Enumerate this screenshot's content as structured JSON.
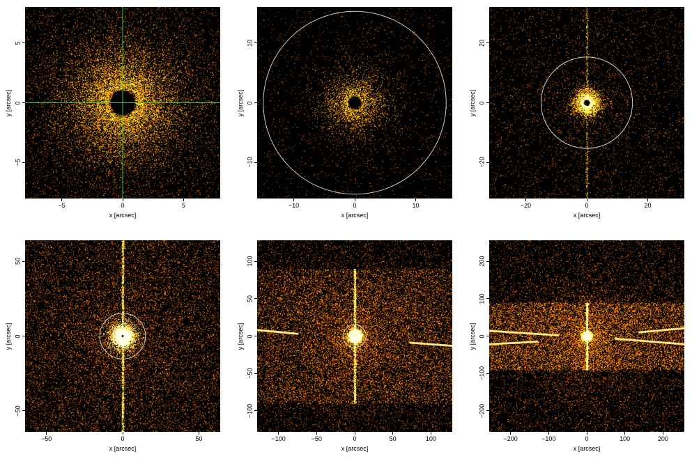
{
  "figure": {
    "panels": [
      {
        "id": "p1",
        "xlabel": "x [arcsec]",
        "ylabel": "y [arcsec]",
        "xlim": [
          -8,
          8
        ],
        "ylim": [
          -8,
          8
        ],
        "xticks": [
          -5,
          0,
          5
        ],
        "yticks": [
          -5,
          0,
          5
        ],
        "xtick_labels": [
          "−5",
          "0",
          "5"
        ],
        "ytick_labels": [
          "−5",
          "0",
          "5"
        ],
        "crosshair": true,
        "crosshair_color": "#33cc33",
        "circle_radius": null,
        "streaks": []
      },
      {
        "id": "p2",
        "xlabel": "x [arcsec]",
        "ylabel": "y [arcsec]",
        "xlim": [
          -16,
          16
        ],
        "ylim": [
          -16,
          16
        ],
        "xticks": [
          -10,
          0,
          10
        ],
        "yticks": [
          -10,
          0,
          10
        ],
        "xtick_labels": [
          "−10",
          "0",
          "10"
        ],
        "ytick_labels": [
          "−10",
          "0",
          "10"
        ],
        "crosshair": false,
        "circle_radius": 15,
        "streaks": []
      },
      {
        "id": "p3",
        "xlabel": "x [arcsec]",
        "ylabel": "y [arcsec]",
        "xlim": [
          -32,
          32
        ],
        "ylim": [
          -32,
          32
        ],
        "xticks": [
          -20,
          0,
          20
        ],
        "yticks": [
          -20,
          0,
          20
        ],
        "xtick_labels": [
          "−20",
          "0",
          "20"
        ],
        "ytick_labels": [
          "−20",
          "0",
          "20"
        ],
        "crosshair": false,
        "circle_radius": 15,
        "streaks": []
      },
      {
        "id": "p4",
        "xlabel": "x [arcsec]",
        "ylabel": "y [arcsec]",
        "xlim": [
          -64,
          64
        ],
        "ylim": [
          -64,
          64
        ],
        "xticks": [
          -50,
          0,
          50
        ],
        "yticks": [
          -50,
          0,
          50
        ],
        "xtick_labels": [
          "−50",
          "0",
          "50"
        ],
        "ytick_labels": [
          "−50",
          "0",
          "50"
        ],
        "crosshair": false,
        "circle_radius": 15,
        "streaks": []
      },
      {
        "id": "p5",
        "xlabel": "x [arcsec]",
        "ylabel": "y [arcsec]",
        "xlim": [
          -128,
          128
        ],
        "ylim": [
          -128,
          128
        ],
        "xticks": [
          -100,
          -50,
          0,
          50,
          100
        ],
        "yticks": [
          -100,
          -50,
          0,
          50,
          100
        ],
        "xtick_labels": [
          "−100",
          "−50",
          "0",
          "50",
          "100"
        ],
        "ytick_labels": [
          "−100",
          "−50",
          "0",
          "50",
          "100"
        ],
        "crosshair": false,
        "circle_radius": 15,
        "streaks": [
          {
            "from": [
              -128,
              8
            ],
            "to": [
              -75,
              3
            ]
          },
          {
            "from": [
              73,
              -9
            ],
            "to": [
              128,
              -13
            ]
          }
        ]
      },
      {
        "id": "p6",
        "xlabel": "x [arcsec]",
        "ylabel": "y [arcsec]",
        "xlim": [
          -256,
          256
        ],
        "ylim": [
          -256,
          256
        ],
        "xticks": [
          -200,
          -100,
          0,
          100,
          200
        ],
        "yticks": [
          -200,
          -100,
          0,
          100,
          200
        ],
        "xtick_labels": [
          "−200",
          "−100",
          "0",
          "100",
          "200"
        ],
        "ytick_labels": [
          "−200",
          "−100",
          "0",
          "100",
          "200"
        ],
        "crosshair": false,
        "circle_radius": null,
        "streaks": [
          {
            "from": [
              -256,
              14
            ],
            "to": [
              -75,
              2
            ]
          },
          {
            "from": [
              -256,
              -22
            ],
            "to": [
              -130,
              -15
            ]
          },
          {
            "from": [
              138,
              10
            ],
            "to": [
              256,
              21
            ]
          },
          {
            "from": [
              75,
              -7
            ],
            "to": [
              256,
              -22
            ]
          }
        ]
      }
    ],
    "colors": {
      "background": "#000000",
      "circle": "#cccccc"
    }
  }
}
